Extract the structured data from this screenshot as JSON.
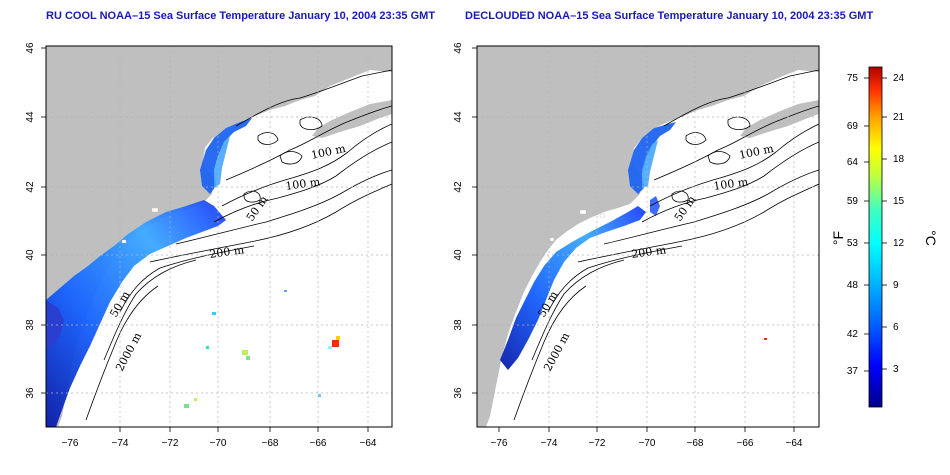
{
  "maps": [
    {
      "title": "RU COOL NOAA–15 Sea Surface Temperature January 10, 2004 23:35 GMT",
      "contour_labels": [
        "100 m",
        "100 m",
        "50 m",
        "200 m",
        "50 m",
        "2000 m"
      ]
    },
    {
      "title": "DECLOUDED NOAA–15 Sea Surface Temperature January 10, 2004 23:35 GMT",
      "contour_labels": [
        "100 m",
        "100 m",
        "50 m",
        "200 m",
        "50 m",
        "2000 m"
      ]
    }
  ],
  "axes": {
    "lon_ticks": [
      "−76",
      "−74",
      "−72",
      "−70",
      "−68",
      "−66",
      "−64"
    ],
    "lat_ticks": [
      "46",
      "44",
      "42",
      "40",
      "38",
      "36"
    ]
  },
  "colorbar": {
    "fahrenheit_ticks": [
      "75",
      "69",
      "64",
      "59",
      "53",
      "48",
      "42",
      "37"
    ],
    "celsius_ticks": [
      "24",
      "21",
      "18",
      "15",
      "12",
      "9",
      "6",
      "3"
    ],
    "fahrenheit_label": "°F",
    "celsius_label": "°C",
    "colors": [
      "#00008b",
      "#0000ff",
      "#0066ff",
      "#00bfff",
      "#00ffff",
      "#3fffbf",
      "#bfff3f",
      "#ffff00",
      "#ffa500",
      "#ff3300",
      "#b20000"
    ]
  },
  "colors": {
    "land": "#bfbfbf",
    "title": "#1a1ab4",
    "grid": "#b4b4b4"
  }
}
